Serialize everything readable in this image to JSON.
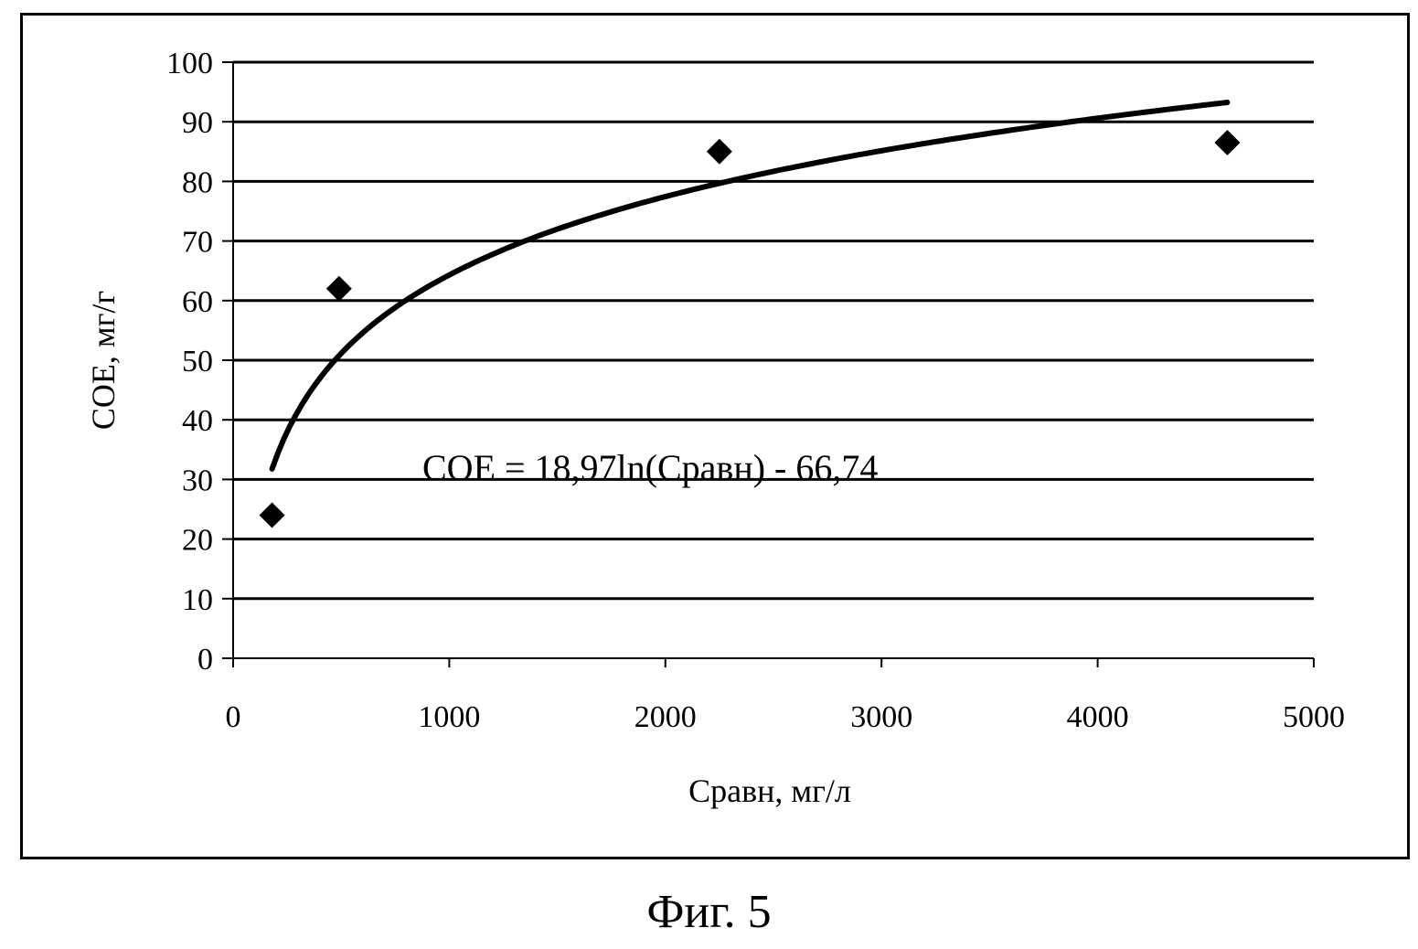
{
  "figure": {
    "caption": "Фиг. 5"
  },
  "chart_data": {
    "type": "scatter",
    "xlabel": "Сравн, мг/л",
    "ylabel": "СОЕ, мг/г",
    "xlim": [
      0,
      5000
    ],
    "ylim": [
      0,
      100
    ],
    "x_ticks": [
      0,
      1000,
      2000,
      3000,
      4000,
      5000
    ],
    "y_ticks": [
      0,
      10,
      20,
      30,
      40,
      50,
      60,
      70,
      80,
      90,
      100
    ],
    "grid": "horizontal",
    "points": [
      {
        "x": 180,
        "y": 24
      },
      {
        "x": 490,
        "y": 62
      },
      {
        "x": 2250,
        "y": 85
      },
      {
        "x": 4600,
        "y": 86.5
      }
    ],
    "trendline": {
      "type": "logarithmic",
      "a": 18.97,
      "b": -66.74,
      "x_start": 180,
      "x_end": 4600
    },
    "annotation": "СОЕ = 18,97ln(Сравн) - 66,74",
    "marker": "diamond",
    "color": "#000000"
  }
}
